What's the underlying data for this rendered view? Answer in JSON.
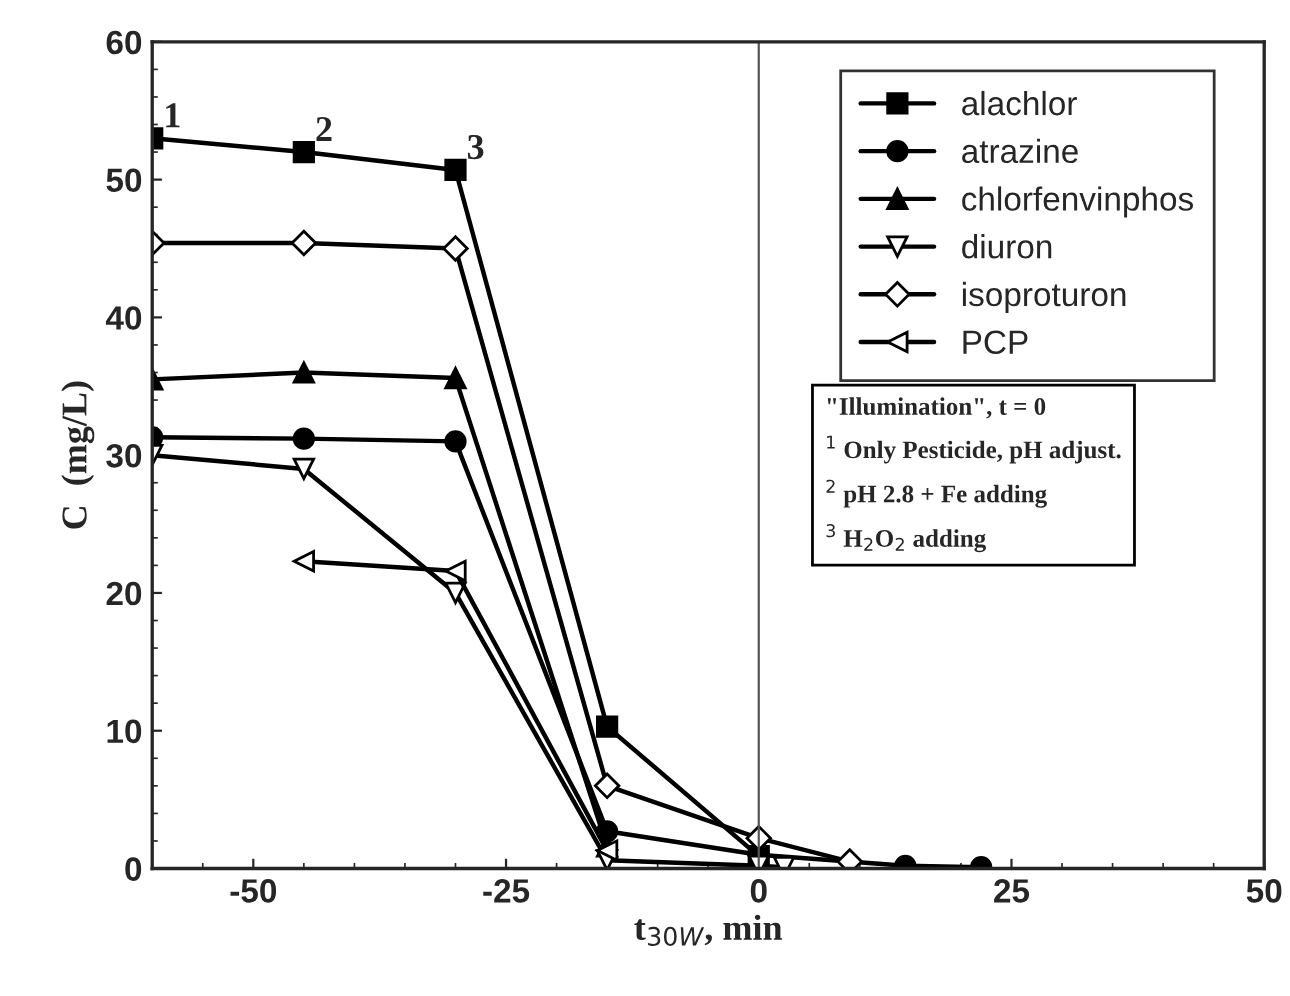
{
  "chart_data": {
    "type": "line",
    "xlabel": "t$_{30W}$, min",
    "ylabel": "C  (mg/L)",
    "xlim": [
      -60,
      50
    ],
    "xticks": [
      -50,
      -25,
      0,
      25,
      50
    ],
    "ylim": [
      0,
      60
    ],
    "yticks": [
      0,
      10,
      20,
      30,
      40,
      50,
      60
    ],
    "grid": false,
    "legend": "top right",
    "line_style": "solid",
    "series": [
      {
        "name": "alachlor",
        "color": "#000000",
        "marker": "square",
        "x": [
          -60,
          -45,
          -30,
          -15,
          0
        ],
        "values": [
          53,
          52,
          50.7,
          10.3,
          0.9
        ]
      },
      {
        "name": "atrazine",
        "color": "#000000",
        "marker": "circle",
        "x": [
          -60,
          -45,
          -30,
          -15,
          0,
          14.5,
          22
        ],
        "values": [
          31.3,
          31.2,
          31,
          2.7,
          1,
          0.2,
          0.1
        ]
      },
      {
        "name": "chlorfenvinphos",
        "color": "#000000",
        "marker": "triangle",
        "x": [
          -60,
          -45,
          -30,
          -15
        ],
        "values": [
          35.5,
          36,
          35.6,
          1.6
        ]
      },
      {
        "name": "diuron",
        "color": "#000000",
        "marker": "triangle_down",
        "x": [
          -60,
          -45,
          -30,
          -15,
          0,
          2.5
        ],
        "values": [
          30,
          29,
          20,
          0.6,
          0.2,
          0.1
        ]
      },
      {
        "name": "isoproturon",
        "color": "#000000",
        "marker": "diamond",
        "x": [
          -60,
          -45,
          -30,
          -15,
          0,
          9
        ],
        "values": [
          45.4,
          45.4,
          45,
          6,
          2.2,
          0.5
        ]
      },
      {
        "name": "PCP",
        "color": "#000000",
        "marker": "triangle_left",
        "x": [
          -45,
          -30,
          -15
        ],
        "values": [
          22.3,
          21.6,
          1.3
        ]
      }
    ],
    "ref_lines": [
      {
        "axis": "x",
        "value": 0,
        "color": "#555555"
      }
    ],
    "annotations": [
      {
        "text": "1",
        "x": -60,
        "y": 53
      },
      {
        "text": "2",
        "x": -45,
        "y": 52
      },
      {
        "text": "3",
        "x": -30,
        "y": 50.7
      },
      "\"Illumination\", t = 0",
      "$^{1}$ Only Pesticide, pH adjust.",
      "$^{2}$ pH 2.8 + Fe adding",
      "$^{3}$ H$_{2}$O$_{2}$ adding"
    ]
  }
}
